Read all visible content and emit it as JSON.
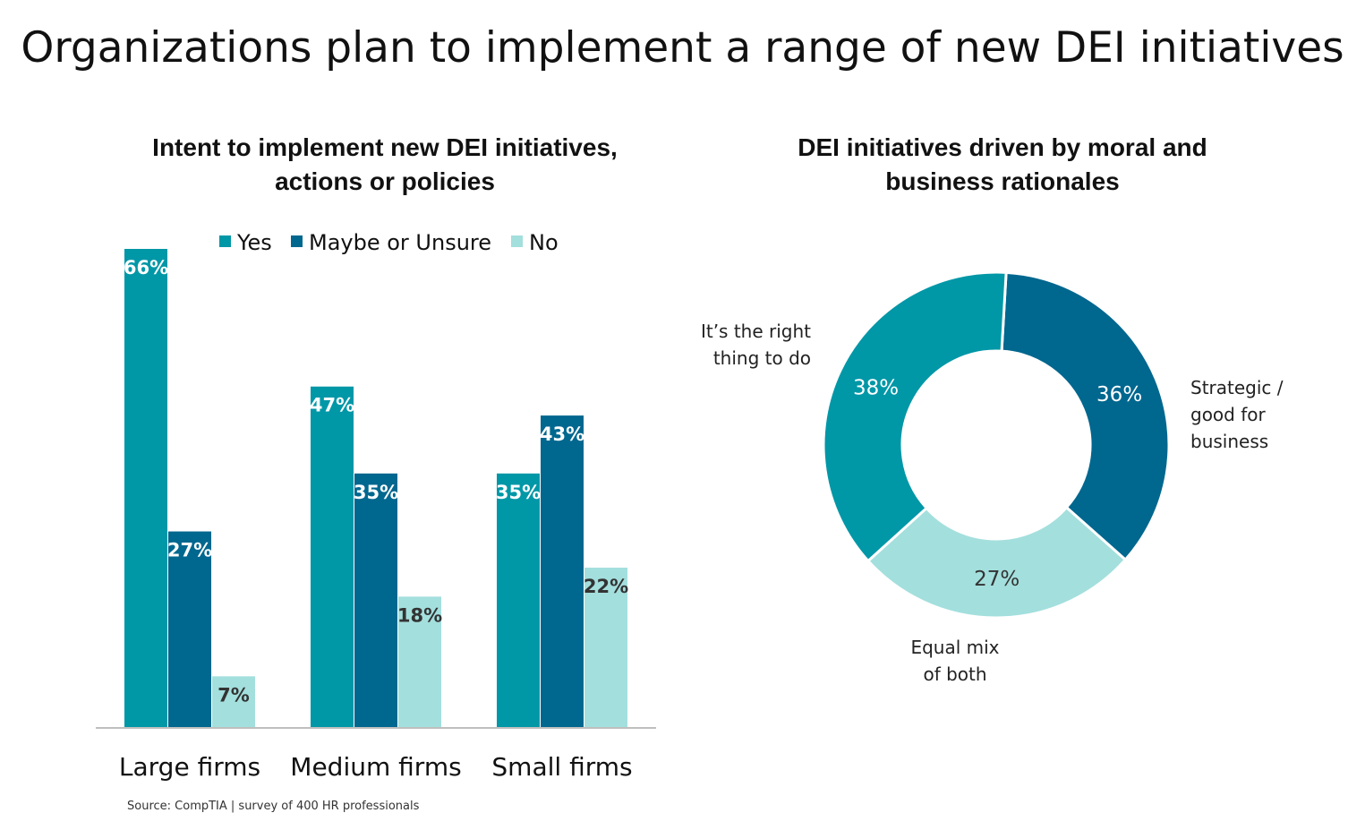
{
  "page_title": "Organizations plan to implement a range of new DEI initiatives",
  "source": "Source: CompTIA | survey of 400 HR professionals",
  "colors": {
    "yes": "#0097A7",
    "maybe": "#00678F",
    "no": "#A3DFDD"
  },
  "chart_data": [
    {
      "type": "bar",
      "title": "Intent to implement new DEI initiatives, actions or policies",
      "categories": [
        "Large firms",
        "Medium firms",
        "Small firms"
      ],
      "series": [
        {
          "name": "Yes",
          "values": [
            66,
            47,
            35
          ],
          "labels": [
            "66%",
            "47%",
            "35%"
          ]
        },
        {
          "name": "Maybe or Unsure",
          "values": [
            27,
            35,
            43
          ],
          "labels": [
            "27%",
            "35%",
            "43%"
          ]
        },
        {
          "name": "No",
          "values": [
            7,
            18,
            22
          ],
          "labels": [
            "7%",
            "18%",
            "22%"
          ]
        }
      ],
      "ylim": [
        0,
        66
      ],
      "legend": "top",
      "grid": false
    },
    {
      "type": "pie",
      "donut": true,
      "title": "DEI initiatives driven by moral and business rationales",
      "slices": [
        {
          "name": "Strategic / good for business",
          "value": 36,
          "label": "36%"
        },
        {
          "name": "Equal mix of both",
          "value": 27,
          "label": "27%"
        },
        {
          "name": "It’s the right thing to do",
          "value": 38,
          "label": "38%"
        }
      ]
    }
  ]
}
